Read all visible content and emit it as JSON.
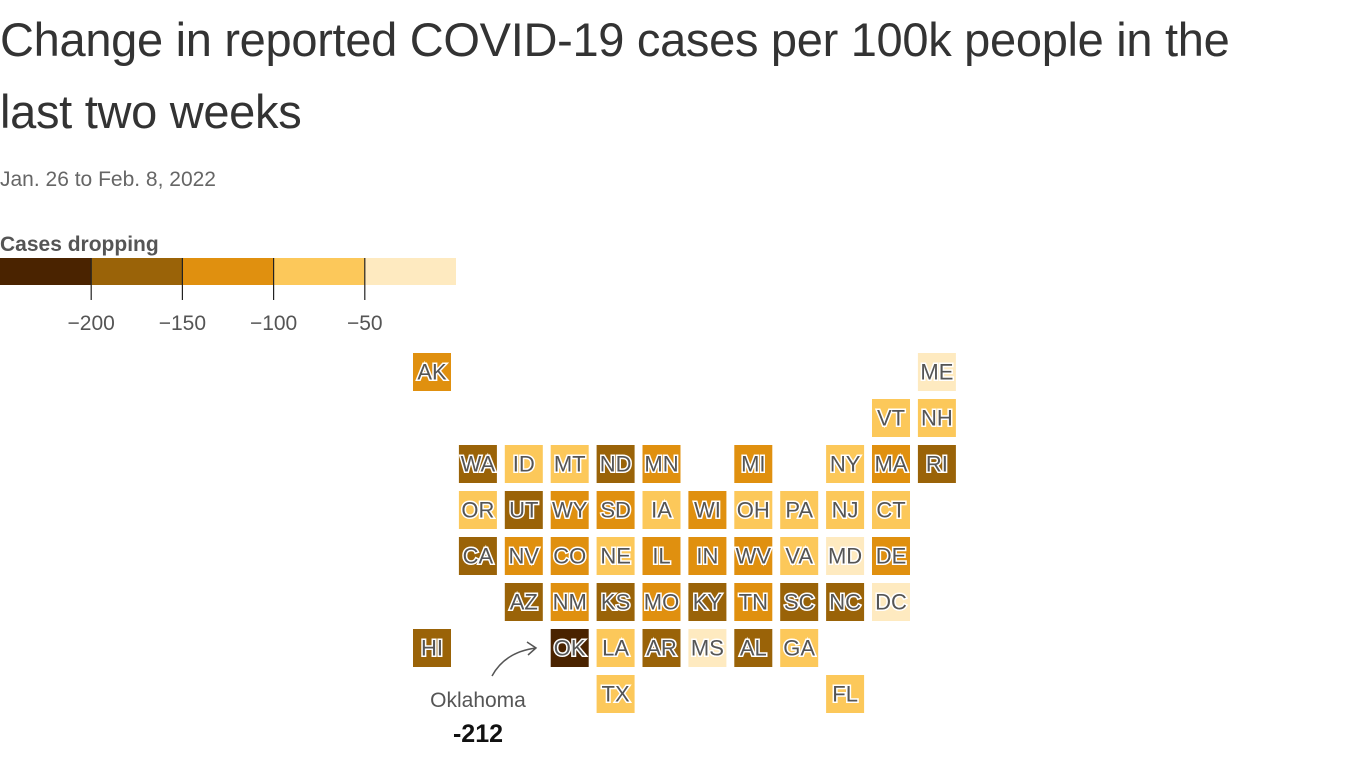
{
  "header": {
    "title": "Change in reported COVID-19 cases per 100k people in the last two weeks",
    "subtitle": "Jan. 26 to Feb. 8, 2022"
  },
  "legend": {
    "title": "Cases dropping",
    "colors": [
      "#4a2300",
      "#9a6308",
      "#e0900f",
      "#fcc85a",
      "#feeac0"
    ],
    "xlim": [
      -250,
      0
    ],
    "xticks": [
      {
        "value": -200,
        "label": "−200"
      },
      {
        "value": -150,
        "label": "−150"
      },
      {
        "value": -100,
        "label": "−100"
      },
      {
        "value": -50,
        "label": "−50"
      }
    ]
  },
  "tiles": [
    {
      "label": "AK",
      "color": "#e0900f"
    },
    {
      "label": "ME",
      "color": "#feeac0"
    },
    {
      "label": "VT",
      "color": "#fcc85a"
    },
    {
      "label": "NH",
      "color": "#fcc85a"
    },
    {
      "label": "WA",
      "color": "#9a6308"
    },
    {
      "label": "ID",
      "color": "#fcc85a"
    },
    {
      "label": "MT",
      "color": "#fcc85a"
    },
    {
      "label": "ND",
      "color": "#9a6308"
    },
    {
      "label": "MN",
      "color": "#e0900f"
    },
    {
      "label": "MI",
      "color": "#e0900f"
    },
    {
      "label": "NY",
      "color": "#fcc85a"
    },
    {
      "label": "MA",
      "color": "#e0900f"
    },
    {
      "label": "RI",
      "color": "#9a6308"
    },
    {
      "label": "OR",
      "color": "#fcc85a"
    },
    {
      "label": "UT",
      "color": "#9a6308"
    },
    {
      "label": "WY",
      "color": "#e0900f"
    },
    {
      "label": "SD",
      "color": "#e0900f"
    },
    {
      "label": "IA",
      "color": "#fcc85a"
    },
    {
      "label": "WI",
      "color": "#e0900f"
    },
    {
      "label": "OH",
      "color": "#fcc85a"
    },
    {
      "label": "PA",
      "color": "#fcc85a"
    },
    {
      "label": "NJ",
      "color": "#fcc85a"
    },
    {
      "label": "CT",
      "color": "#fcc85a"
    },
    {
      "label": "CA",
      "color": "#9a6308"
    },
    {
      "label": "NV",
      "color": "#e0900f"
    },
    {
      "label": "CO",
      "color": "#e0900f"
    },
    {
      "label": "NE",
      "color": "#fcc85a"
    },
    {
      "label": "IL",
      "color": "#e0900f"
    },
    {
      "label": "IN",
      "color": "#e0900f"
    },
    {
      "label": "WV",
      "color": "#e0900f"
    },
    {
      "label": "VA",
      "color": "#fcc85a"
    },
    {
      "label": "MD",
      "color": "#feeac0"
    },
    {
      "label": "DE",
      "color": "#e0900f"
    },
    {
      "label": "AZ",
      "color": "#9a6308"
    },
    {
      "label": "NM",
      "color": "#e0900f"
    },
    {
      "label": "KS",
      "color": "#9a6308"
    },
    {
      "label": "MO",
      "color": "#e0900f"
    },
    {
      "label": "KY",
      "color": "#9a6308"
    },
    {
      "label": "TN",
      "color": "#e0900f"
    },
    {
      "label": "SC",
      "color": "#9a6308"
    },
    {
      "label": "NC",
      "color": "#9a6308"
    },
    {
      "label": "DC",
      "color": "#feeac0"
    },
    {
      "label": "HI",
      "color": "#9a6308"
    },
    {
      "label": "OK",
      "color": "#4a2300"
    },
    {
      "label": "LA",
      "color": "#fcc85a"
    },
    {
      "label": "AR",
      "color": "#9a6308"
    },
    {
      "label": "MS",
      "color": "#feeac0"
    },
    {
      "label": "AL",
      "color": "#9a6308"
    },
    {
      "label": "GA",
      "color": "#fcc85a"
    },
    {
      "label": "TX",
      "color": "#fcc85a"
    },
    {
      "label": "FL",
      "color": "#fcc85a"
    }
  ],
  "annotation": {
    "label": "Oklahoma",
    "value": -212
  }
}
